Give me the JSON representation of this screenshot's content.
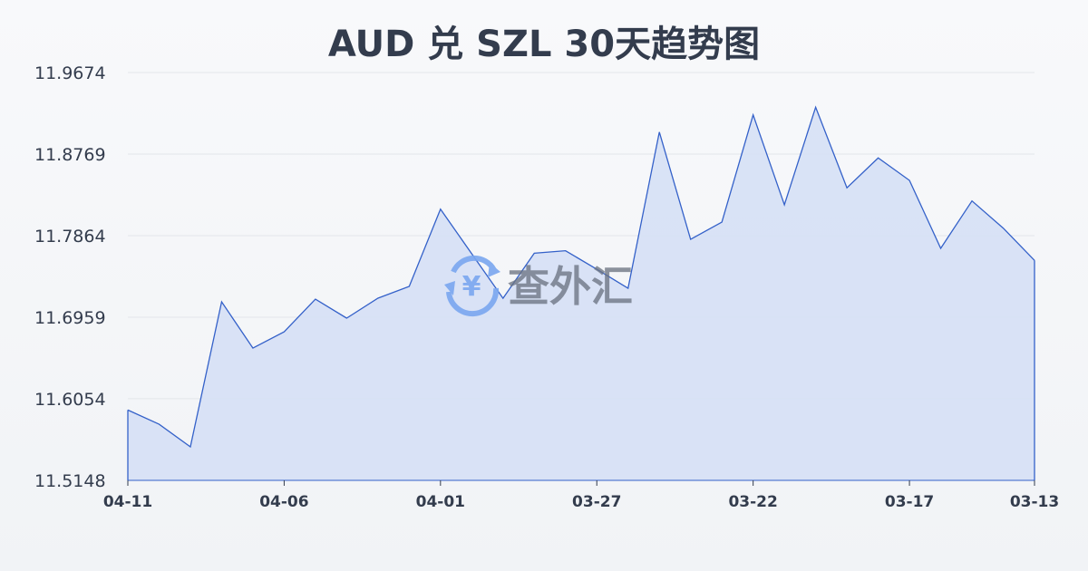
{
  "chart_data": {
    "type": "area",
    "title": "AUD 兑 SZL 30天趋势图",
    "xlabel": "",
    "ylabel": "",
    "ylim": [
      11.5148,
      11.9674
    ],
    "yticks": [
      "11.5148",
      "11.6054",
      "11.6959",
      "11.7864",
      "11.8769",
      "11.9674"
    ],
    "xticks": [
      "04-11",
      "04-06",
      "04-01",
      "03-27",
      "03-22",
      "03-17",
      "03-13"
    ],
    "grid": true,
    "x": [
      "04-11",
      "04-10",
      "04-09",
      "04-08",
      "04-07",
      "04-06",
      "04-05",
      "04-04",
      "04-03",
      "04-02",
      "04-01",
      "03-31",
      "03-30",
      "03-29",
      "03-28",
      "03-27",
      "03-26",
      "03-25",
      "03-24",
      "03-23",
      "03-22",
      "03-21",
      "03-20",
      "03-19",
      "03-18",
      "03-17",
      "03-16",
      "03-15",
      "03-14",
      "03-13"
    ],
    "values": [
      11.5929,
      11.5771,
      11.552,
      11.7129,
      11.6616,
      11.6797,
      11.7159,
      11.6948,
      11.717,
      11.73,
      11.8158,
      11.7662,
      11.7168,
      11.7669,
      11.7696,
      11.7491,
      11.728,
      11.9013,
      11.7823,
      11.8014,
      11.9204,
      11.8206,
      11.9289,
      11.8394,
      11.8726,
      11.8477,
      11.7723,
      11.8249,
      11.7947,
      11.7589
    ],
    "colors": {
      "line": "#3461c9",
      "fill": "#d6e0f5",
      "grid": "#e3e6ea",
      "text": "#333c4d"
    }
  },
  "watermark": {
    "text": "查外汇",
    "icon": "yen-exchange-icon",
    "color": "#7aa7f0"
  }
}
